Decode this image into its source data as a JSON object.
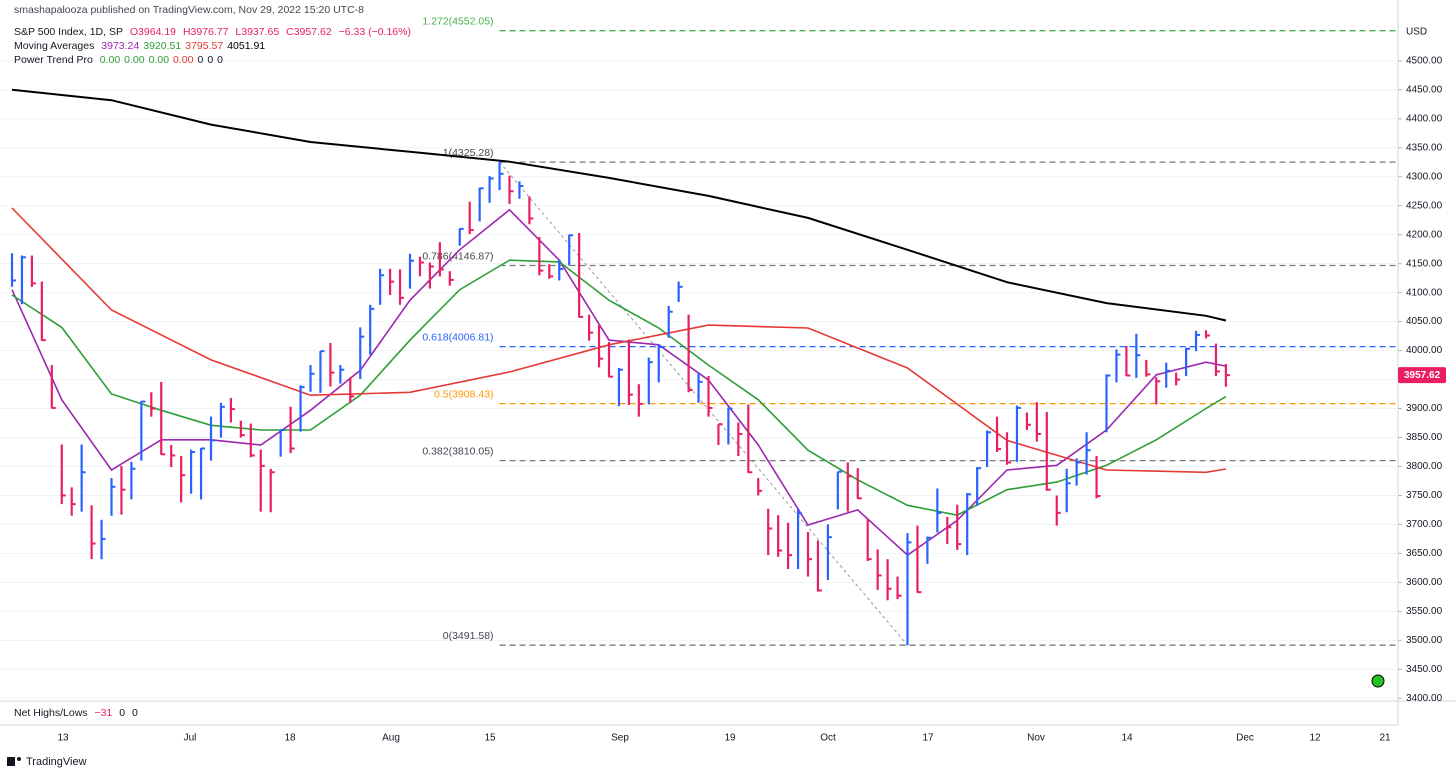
{
  "header": {
    "publisher": "smashapalooza published on TradingView.com, Nov 29, 2022 15:20 UTC-8",
    "symbol": "S&P 500 Index, 1D, SP",
    "ohlc": [
      "O3964.19",
      "H3976.77",
      "L3937.65",
      "C3957.62",
      "−6.33 (−0.16%)"
    ],
    "ma_title": "Moving Averages",
    "indicator": "Power Trend Pro",
    "indicator_values": [
      "0.00",
      "0.00",
      "0.00",
      "0.00",
      "0",
      "0",
      "0"
    ]
  },
  "chart_data": {
    "type": "ohlc",
    "x": [
      "Jun 6",
      "Jun 7",
      "Jun 8",
      "Jun 9",
      "Jun 10",
      "Jun 13",
      "Jun 14",
      "Jun 15",
      "Jun 16",
      "Jun 17",
      "Jun 21",
      "Jun 22",
      "Jun 23",
      "Jun 24",
      "Jun 27",
      "Jun 28",
      "Jun 29",
      "Jun 30",
      "Jul 1",
      "Jul 5",
      "Jul 6",
      "Jul 7",
      "Jul 8",
      "Jul 11",
      "Jul 12",
      "Jul 13",
      "Jul 14",
      "Jul 15",
      "Jul 18",
      "Jul 19",
      "Jul 20",
      "Jul 21",
      "Jul 22",
      "Jul 25",
      "Jul 26",
      "Jul 27",
      "Jul 28",
      "Jul 29",
      "Aug 1",
      "Aug 2",
      "Aug 3",
      "Aug 4",
      "Aug 5",
      "Aug 8",
      "Aug 9",
      "Aug 10",
      "Aug 11",
      "Aug 12",
      "Aug 15",
      "Aug 16",
      "Aug 17",
      "Aug 18",
      "Aug 19",
      "Aug 22",
      "Aug 23",
      "Aug 24",
      "Aug 25",
      "Aug 26",
      "Aug 29",
      "Aug 30",
      "Aug 31",
      "Sep 1",
      "Sep 2",
      "Sep 6",
      "Sep 7",
      "Sep 8",
      "Sep 9",
      "Sep 12",
      "Sep 13",
      "Sep 14",
      "Sep 15",
      "Sep 16",
      "Sep 19",
      "Sep 20",
      "Sep 21",
      "Sep 22",
      "Sep 23",
      "Sep 26",
      "Sep 27",
      "Sep 28",
      "Sep 29",
      "Sep 30",
      "Oct 3",
      "Oct 4",
      "Oct 5",
      "Oct 6",
      "Oct 7",
      "Oct 10",
      "Oct 11",
      "Oct 12",
      "Oct 13",
      "Oct 14",
      "Oct 17",
      "Oct 18",
      "Oct 19",
      "Oct 20",
      "Oct 21",
      "Oct 24",
      "Oct 25",
      "Oct 26",
      "Oct 27",
      "Oct 28",
      "Oct 31",
      "Nov 1",
      "Nov 2",
      "Nov 3",
      "Nov 4",
      "Nov 7",
      "Nov 8",
      "Nov 9",
      "Nov 10",
      "Nov 11",
      "Nov 14",
      "Nov 15",
      "Nov 16",
      "Nov 17",
      "Nov 18",
      "Nov 21",
      "Nov 22",
      "Nov 23",
      "Nov 25",
      "Nov 28",
      "Nov 29"
    ],
    "high": [
      4168,
      4164,
      4164,
      4119,
      3975,
      3838,
      3764,
      3838,
      3733,
      3708,
      3780,
      3801,
      3808,
      3913,
      3928,
      3946,
      3837,
      3818,
      3829,
      3832,
      3886,
      3910,
      3918,
      3879,
      3874,
      3829,
      3796,
      3863,
      3903,
      3940,
      3975,
      3999,
      4013,
      3975,
      3954,
      4040,
      4079,
      4141,
      4141,
      4140,
      4167,
      4162,
      4152,
      4187,
      4137,
      4211,
      4257,
      4281,
      4301,
      4325.28,
      4302,
      4292,
      4266,
      4196,
      4149,
      4157,
      4200,
      4203,
      4062,
      4044,
      4015,
      3970,
      4019,
      3942,
      3988,
      4011,
      4077,
      4119,
      4062,
      3962,
      3956,
      3873,
      3902,
      3876,
      3907,
      3780,
      3727,
      3716,
      3703,
      3727,
      3687,
      3672,
      3700,
      3791,
      3807,
      3797,
      3710,
      3657,
      3640,
      3610,
      3685,
      3698,
      3679,
      3762,
      3713,
      3734,
      3754,
      3799,
      3862,
      3886,
      3859,
      3905,
      3893,
      3911,
      3894,
      3750,
      3796,
      3814,
      3859,
      3818,
      3959,
      4002,
      4008,
      4029,
      3984,
      3954,
      3979,
      3962,
      4005,
      4034,
      4035,
      4012,
      3976.77
    ],
    "low": [
      4110,
      4080,
      4110,
      4017,
      3900,
      3735,
      3715,
      3722,
      3640,
      3640,
      3715,
      3717,
      3743,
      3810,
      3886,
      3820,
      3799,
      3738,
      3753,
      3743,
      3810,
      3850,
      3876,
      3850,
      3816,
      3722,
      3721,
      3817,
      3823,
      3860,
      3929,
      3927,
      3938,
      3943,
      3910,
      3951,
      3993,
      4079,
      4096,
      4079,
      4107,
      4128,
      4107,
      4128,
      4112,
      4181,
      4201,
      4223,
      4255,
      4277,
      4253,
      4262,
      4218,
      4130,
      4124,
      4121,
      4147,
      4057,
      4017,
      3971,
      3954,
      3904,
      3906,
      3886,
      3907,
      3945,
      4022,
      4084,
      3928,
      3910,
      3886,
      3837,
      3838,
      3818,
      3789,
      3750,
      3647,
      3644,
      3623,
      3623,
      3610,
      3584,
      3604,
      3726,
      3722,
      3744,
      3637,
      3587,
      3569,
      3571,
      3491.58,
      3582,
      3632,
      3686,
      3666,
      3656,
      3647,
      3732,
      3799,
      3825,
      3803,
      3808,
      3863,
      3843,
      3758,
      3698,
      3721,
      3767,
      3786,
      3745,
      3859,
      3945,
      3956,
      3953,
      3955,
      3907,
      3936,
      3940,
      3956,
      3999,
      4021,
      3956,
      3937.65
    ],
    "close": [
      4121,
      4161,
      4116,
      4018,
      3901,
      3750,
      3735,
      3790,
      3667,
      3675,
      3765,
      3760,
      3796,
      3912,
      3900,
      3821,
      3819,
      3785,
      3825,
      3831,
      3845,
      3903,
      3899,
      3854,
      3819,
      3801,
      3790,
      3863,
      3831,
      3937,
      3960,
      3999,
      3962,
      3967,
      3921,
      4024,
      4072,
      4130,
      4119,
      4091,
      4155,
      4152,
      4145,
      4140,
      4122,
      4210,
      4208,
      4280,
      4297,
      4305,
      4275,
      4284,
      4228,
      4138,
      4128,
      4141,
      4199,
      4058,
      4031,
      3986,
      3955,
      3967,
      3924,
      3908,
      3980,
      4006,
      4067,
      4110,
      3932,
      3946,
      3901,
      3873,
      3900,
      3856,
      3790,
      3758,
      3693,
      3655,
      3647,
      3719,
      3640,
      3586,
      3678,
      3791,
      3783,
      3745,
      3640,
      3612,
      3589,
      3577,
      3669,
      3583,
      3677,
      3720,
      3695,
      3666,
      3752,
      3797,
      3859,
      3830,
      3807,
      3901,
      3872,
      3856,
      3760,
      3720,
      3771,
      3807,
      3828,
      3749,
      3957,
      3993,
      3957,
      3992,
      3959,
      3947,
      3965,
      3950,
      4003,
      4027,
      4026,
      3964,
      3957.62
    ],
    "colors": {
      "up": "#2962ff",
      "down": "#e91e63"
    },
    "moving_averages": [
      {
        "color": "#9c27b0",
        "x": [
          "Jun 6",
          "Jun 13",
          "Jun 21",
          "Jun 28",
          "Jul 6",
          "Jul 13",
          "Jul 20",
          "Jul 27",
          "Aug 3",
          "Aug 10",
          "Aug 17",
          "Aug 24",
          "Aug 31",
          "Sep 8",
          "Sep 15",
          "Sep 22",
          "Sep 29",
          "Oct 6",
          "Oct 13",
          "Oct 20",
          "Oct 27",
          "Nov 3",
          "Nov 10",
          "Nov 17",
          "Nov 25",
          "Nov 29"
        ],
        "values": [
          4105,
          3915,
          3794,
          3846,
          3846,
          3837,
          3897,
          3966,
          4087,
          4174,
          4243,
          4156,
          4018,
          4010,
          3949,
          3837,
          3699,
          3725,
          3647,
          3707,
          3794,
          3802,
          3863,
          3958,
          3980,
          3973.24
        ]
      },
      {
        "color": "#2e9e36",
        "x": [
          "Jun 6",
          "Jun 13",
          "Jun 21",
          "Jun 28",
          "Jul 6",
          "Jul 13",
          "Jul 20",
          "Jul 27",
          "Aug 3",
          "Aug 10",
          "Aug 17",
          "Aug 24",
          "Aug 31",
          "Sep 8",
          "Sep 15",
          "Sep 22",
          "Sep 29",
          "Oct 6",
          "Oct 13",
          "Oct 20",
          "Oct 27",
          "Nov 3",
          "Nov 10",
          "Nov 17",
          "Nov 25",
          "Nov 29"
        ],
        "values": [
          4096,
          4040,
          3925,
          3897,
          3871,
          3863,
          3863,
          3923,
          4018,
          4105,
          4156,
          4153,
          4087,
          4039,
          3975,
          3915,
          3828,
          3777,
          3733,
          3716,
          3760,
          3773,
          3802,
          3846,
          3900,
          3920.51
        ]
      },
      {
        "color": "#e53935",
        "x": [
          "Jun 6",
          "Jun 21",
          "Jul 6",
          "Jul 20",
          "Aug 3",
          "Aug 17",
          "Aug 31",
          "Sep 15",
          "Sep 29",
          "Oct 13",
          "Oct 27",
          "Nov 10",
          "Nov 25",
          "Nov 29"
        ],
        "values": [
          4246,
          4070,
          3984,
          3923,
          3928,
          3963,
          4010,
          4044,
          4039,
          3970,
          3845,
          3794,
          3790,
          3795.57
        ]
      },
      {
        "color": "#000000",
        "x": [
          "Jun 6",
          "Jun 21",
          "Jul 6",
          "Jul 20",
          "Aug 3",
          "Aug 17",
          "Aug 31",
          "Sep 15",
          "Sep 29",
          "Oct 13",
          "Oct 27",
          "Nov 10",
          "Nov 25",
          "Nov 29"
        ],
        "values": [
          4450,
          4432,
          4390,
          4360,
          4343,
          4326,
          4298,
          4267,
          4229,
          4174,
          4118,
          4082,
          4060,
          4051.91
        ]
      }
    ],
    "fib": [
      {
        "value": 4552.05,
        "label": "1.272(4552.05)",
        "color": "#4caf50"
      },
      {
        "value": 4325.28,
        "label": "1(4325.28)",
        "color": "#787b86"
      },
      {
        "value": 4146.87,
        "label": "0.786(4146.87)",
        "color": "#787b86"
      },
      {
        "value": 4006.81,
        "label": "0.618(4006.81)",
        "color": "#2962ff"
      },
      {
        "value": 3908.43,
        "label": "0.5(3908.43)",
        "color": "#ff9800"
      },
      {
        "value": 3810.05,
        "label": "0.382(3810.05)",
        "color": "#787b86"
      },
      {
        "value": 3491.58,
        "label": "0(3491.58)",
        "color": "#787b86"
      }
    ],
    "ylim": [
      3397,
      4605
    ],
    "yticks": [
      {
        "value": 3400,
        "label": "3400.00"
      },
      {
        "value": 3450,
        "label": "3450.00"
      },
      {
        "value": 3500,
        "label": "3500.00"
      },
      {
        "value": 3550,
        "label": "3550.00"
      },
      {
        "value": 3600,
        "label": "3600.00"
      },
      {
        "value": 3650,
        "label": "3650.00"
      },
      {
        "value": 3700,
        "label": "3700.00"
      },
      {
        "value": 3750,
        "label": "3750.00"
      },
      {
        "value": 3800,
        "label": "3800.00"
      },
      {
        "value": 3850,
        "label": "3850.00"
      },
      {
        "value": 3900,
        "label": "3900.00"
      },
      {
        "value": 3950,
        "label": "3950.00"
      },
      {
        "value": 4000,
        "label": "4000.00"
      },
      {
        "value": 4050,
        "label": "4050.00"
      },
      {
        "value": 4100,
        "label": "4100.00"
      },
      {
        "value": 4150,
        "label": "4150.00"
      },
      {
        "value": 4200,
        "label": "4200.00"
      },
      {
        "value": 4250,
        "label": "4250.00"
      },
      {
        "value": 4300,
        "label": "4300.00"
      },
      {
        "value": 4350,
        "label": "4350.00"
      },
      {
        "value": 4400,
        "label": "4400.00"
      },
      {
        "value": 4450,
        "label": "4450.00"
      },
      {
        "value": 4500,
        "label": "4500.00"
      }
    ],
    "y_unit": "USD",
    "grid": true,
    "x_labels": [
      "13",
      "Jul",
      "18",
      "Aug",
      "15",
      "Sep",
      "19",
      "Oct",
      "17",
      "Nov",
      "14",
      "Dec",
      "12",
      "21"
    ],
    "lower_pane": {
      "title": "Net Highs/Lows",
      "values": [
        "−31",
        "0",
        "0"
      ]
    }
  },
  "footer": "TradingView"
}
